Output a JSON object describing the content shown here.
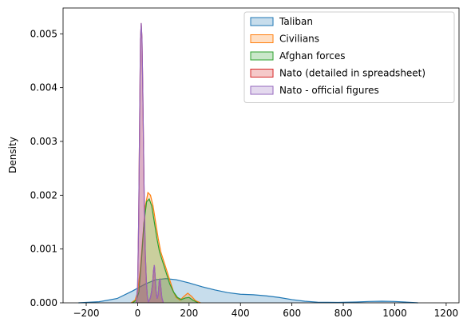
{
  "chart_data": {
    "type": "area",
    "title": "",
    "xlabel": "",
    "ylabel": "Density",
    "xlim": [
      -290,
      1250
    ],
    "ylim": [
      0,
      0.00548
    ],
    "xticks": [
      -200,
      0,
      200,
      400,
      600,
      800,
      1000,
      1200
    ],
    "xtick_labels": [
      "−200",
      "0",
      "200",
      "400",
      "600",
      "800",
      "1000",
      "1200"
    ],
    "yticks": [
      0,
      0.001,
      0.002,
      0.003,
      0.004,
      0.005
    ],
    "ytick_labels": [
      "0.000",
      "0.001",
      "0.002",
      "0.003",
      "0.004",
      "0.005"
    ],
    "grid": false,
    "legend_position": "top-right",
    "series": [
      {
        "name": "Taliban",
        "color": "#1f77b4",
        "points": [
          [
            -230,
            0.0
          ],
          [
            -150,
            2e-05
          ],
          [
            -80,
            8e-05
          ],
          [
            -20,
            0.00022
          ],
          [
            30,
            0.00035
          ],
          [
            70,
            0.00043
          ],
          [
            110,
            0.00045
          ],
          [
            150,
            0.00043
          ],
          [
            200,
            0.00037
          ],
          [
            250,
            0.0003
          ],
          [
            300,
            0.00024
          ],
          [
            350,
            0.00019
          ],
          [
            400,
            0.00016
          ],
          [
            450,
            0.00015
          ],
          [
            500,
            0.00013
          ],
          [
            550,
            0.0001
          ],
          [
            600,
            6e-05
          ],
          [
            650,
            3e-05
          ],
          [
            700,
            1.2e-05
          ],
          [
            780,
            8e-06
          ],
          [
            850,
            1.5e-05
          ],
          [
            900,
            2.5e-05
          ],
          [
            950,
            3e-05
          ],
          [
            1000,
            2.5e-05
          ],
          [
            1050,
            1.2e-05
          ],
          [
            1090,
            0.0
          ]
        ]
      },
      {
        "name": "Civilians",
        "color": "#ff7f0e",
        "points": [
          [
            -25,
            0.0
          ],
          [
            -10,
            5e-05
          ],
          [
            0,
            0.0002
          ],
          [
            10,
            0.0006
          ],
          [
            20,
            0.0012
          ],
          [
            30,
            0.0018
          ],
          [
            40,
            0.00205
          ],
          [
            50,
            0.002
          ],
          [
            60,
            0.0018
          ],
          [
            70,
            0.0015
          ],
          [
            80,
            0.0012
          ],
          [
            90,
            0.00095
          ],
          [
            100,
            0.0008
          ],
          [
            110,
            0.00065
          ],
          [
            120,
            0.0005
          ],
          [
            130,
            0.00035
          ],
          [
            140,
            0.0002
          ],
          [
            150,
            0.0001
          ],
          [
            165,
            5e-05
          ],
          [
            180,
            0.00012
          ],
          [
            195,
            0.00018
          ],
          [
            210,
            0.00012
          ],
          [
            225,
            4e-05
          ],
          [
            245,
            0.0
          ]
        ]
      },
      {
        "name": "Afghan forces",
        "color": "#2ca02c",
        "points": [
          [
            -20,
            0.0
          ],
          [
            -5,
            5e-05
          ],
          [
            5,
            0.0002
          ],
          [
            15,
            0.0008
          ],
          [
            25,
            0.0015
          ],
          [
            35,
            0.00188
          ],
          [
            45,
            0.00193
          ],
          [
            55,
            0.0018
          ],
          [
            65,
            0.0015
          ],
          [
            75,
            0.0012
          ],
          [
            85,
            0.00095
          ],
          [
            95,
            0.0008
          ],
          [
            105,
            0.00065
          ],
          [
            115,
            0.0005
          ],
          [
            125,
            0.00035
          ],
          [
            140,
            0.0002
          ],
          [
            155,
            0.0001
          ],
          [
            170,
            6e-05
          ],
          [
            185,
            9e-05
          ],
          [
            200,
            0.0001
          ],
          [
            215,
            5e-05
          ],
          [
            235,
            0.0
          ]
        ]
      },
      {
        "name": "Nato (detailed in spreadsheet)",
        "color": "#d62728",
        "points": [
          [
            -5,
            0.0
          ],
          [
            0,
            0.0003
          ],
          [
            4,
            0.0015
          ],
          [
            8,
            0.0035
          ],
          [
            11,
            0.0049
          ],
          [
            14,
            0.0052
          ],
          [
            17,
            0.0049
          ],
          [
            20,
            0.004
          ],
          [
            23,
            0.0029
          ],
          [
            26,
            0.0018
          ],
          [
            30,
            0.0009
          ],
          [
            34,
            0.0004
          ],
          [
            38,
            0.0001
          ],
          [
            42,
            2e-05
          ],
          [
            46,
            5e-05
          ],
          [
            50,
            0.0001
          ],
          [
            54,
            0.0002
          ],
          [
            58,
            0.00035
          ],
          [
            62,
            0.0006
          ],
          [
            65,
            0.0007
          ],
          [
            68,
            0.0005
          ],
          [
            72,
            0.0002
          ],
          [
            76,
            8e-05
          ],
          [
            80,
            0.00015
          ],
          [
            84,
            0.0004
          ],
          [
            87,
            0.00045
          ],
          [
            90,
            0.0003
          ],
          [
            94,
            0.0001
          ],
          [
            100,
            0.0
          ]
        ]
      },
      {
        "name": "Nato - official figures",
        "color": "#9467bd",
        "points": [
          [
            -5,
            0.0
          ],
          [
            0,
            0.0003
          ],
          [
            4,
            0.0015
          ],
          [
            8,
            0.0035
          ],
          [
            11,
            0.0049
          ],
          [
            14,
            0.0052
          ],
          [
            17,
            0.0049
          ],
          [
            20,
            0.004
          ],
          [
            23,
            0.0029
          ],
          [
            26,
            0.0018
          ],
          [
            30,
            0.0009
          ],
          [
            34,
            0.0004
          ],
          [
            38,
            0.0001
          ],
          [
            42,
            2e-05
          ],
          [
            46,
            5e-05
          ],
          [
            50,
            0.0001
          ],
          [
            54,
            0.0002
          ],
          [
            58,
            0.00035
          ],
          [
            62,
            0.0006
          ],
          [
            65,
            0.0007
          ],
          [
            68,
            0.0005
          ],
          [
            72,
            0.0002
          ],
          [
            76,
            8e-05
          ],
          [
            80,
            0.00015
          ],
          [
            84,
            0.0004
          ],
          [
            87,
            0.00045
          ],
          [
            90,
            0.0003
          ],
          [
            94,
            0.0001
          ],
          [
            100,
            0.0
          ]
        ]
      }
    ]
  }
}
